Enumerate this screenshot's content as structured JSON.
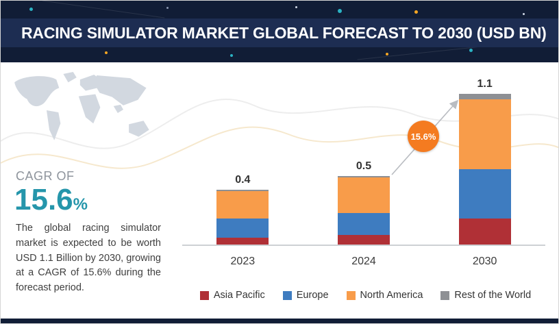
{
  "header": {
    "title": "RACING SIMULATOR MARKET GLOBAL FORECAST TO 2030 (USD BN)"
  },
  "sidebar": {
    "cagr_label": "CAGR OF",
    "cagr_value_main": "15.6",
    "cagr_value_suffix": "%",
    "description": "The global racing simulator market is expected to be worth USD 1.1 Billion by 2030, growing at a CAGR of 15.6% during the forecast period."
  },
  "chart_data": {
    "type": "bar",
    "stacked": true,
    "title": "RACING SIMULATOR MARKET GLOBAL FORECAST TO 2030 (USD BN)",
    "unit": "USD BN",
    "categories": [
      "2023",
      "2024",
      "2030"
    ],
    "series": [
      {
        "name": "Asia Pacific",
        "color": "#b03036",
        "values": [
          0.05,
          0.07,
          0.19
        ]
      },
      {
        "name": "Europe",
        "color": "#3e7cc0",
        "values": [
          0.14,
          0.16,
          0.36
        ]
      },
      {
        "name": "North America",
        "color": "#f89c4a",
        "values": [
          0.2,
          0.26,
          0.51
        ]
      },
      {
        "name": "Rest of the World",
        "color": "#8e9094",
        "values": [
          0.01,
          0.01,
          0.04
        ]
      }
    ],
    "totals": [
      0.4,
      0.5,
      1.1
    ],
    "total_labels": [
      "0.4",
      "0.5",
      "1.1"
    ],
    "growth_badge": "15.6%",
    "cagr_percent": 15.6,
    "legend_position": "bottom",
    "ylim": [
      0,
      1.2
    ],
    "grid": false
  },
  "colors": {
    "header_navy": "#111d36",
    "header_band_navy": "#1d2d52",
    "accent_teal": "#2596ab",
    "badge_orange": "#f47b20",
    "asia_pacific_red": "#b03036",
    "europe_blue": "#3e7cc0",
    "north_america_orange": "#f89c4a",
    "rest_of_world_gray": "#8e9094"
  }
}
